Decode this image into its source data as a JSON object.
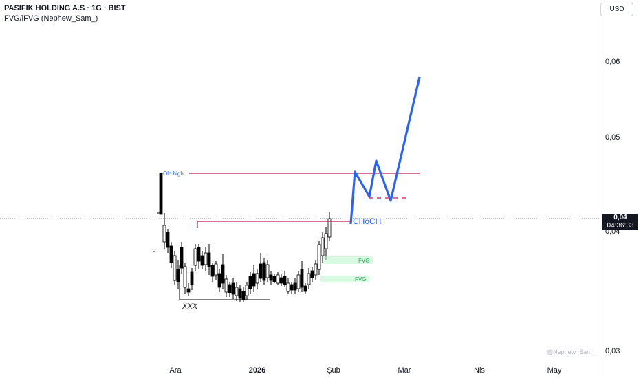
{
  "header": {
    "symbol_line": "PASIFIK HOLDING A.S · 1G · BIST",
    "indicator_line": "FVG/iFVG (Nephew_Sam_)"
  },
  "currency_button": "USD",
  "price_tag": {
    "price": "0,04",
    "countdown": "04:36:33"
  },
  "watermark": "@Nephew_Sam_",
  "chart_data": {
    "type": "candlestick",
    "y_tick_labels": [
      "0,06",
      "0,05",
      "0,04",
      "0,03"
    ],
    "x_tick_labels": [
      "Ara",
      "2026",
      "Şub",
      "Mar",
      "Nis",
      "May"
    ],
    "y_scale": "log",
    "grid": false,
    "annotations": {
      "old_high_label": "Old high",
      "choch_label": "CHoCH",
      "xxx_label": "XXX",
      "fvg_labels": [
        "FVG",
        "FVG"
      ]
    },
    "colors": {
      "bull": "#ffffff",
      "bear": "#000000",
      "projection": "#2962ff",
      "level": "#c2185b",
      "fvg": "#b9f6ca",
      "fvg_text": "#26a65b"
    }
  }
}
